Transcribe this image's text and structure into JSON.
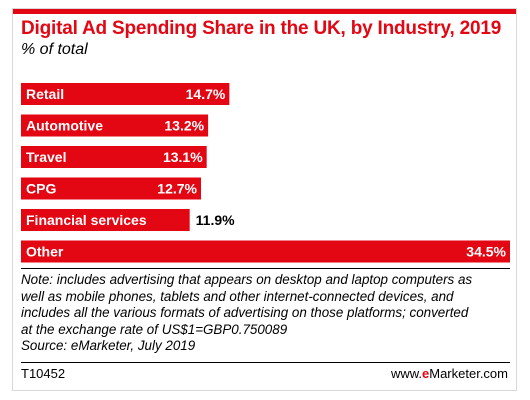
{
  "header": {
    "title": "Digital Ad Spending Share in the UK, by Industry, 2019",
    "subtitle": "% of total"
  },
  "chart_data": {
    "type": "bar",
    "orientation": "horizontal",
    "title": "Digital Ad Spending Share in the UK, by Industry, 2019",
    "subtitle": "% of total",
    "categories": [
      "Retail",
      "Automotive",
      "Travel",
      "CPG",
      "Financial services",
      "Other"
    ],
    "values": [
      14.7,
      13.2,
      13.1,
      12.7,
      11.9,
      34.5
    ],
    "value_labels": [
      "14.7%",
      "13.2%",
      "13.1%",
      "12.7%",
      "11.9%",
      "34.5%"
    ],
    "unit": "%",
    "xlim": [
      0,
      34.5
    ],
    "grid": false,
    "legend": "none",
    "bar_color": "#e30613"
  },
  "notes": {
    "lines": [
      "Note: includes advertising that appears on desktop and laptop computers as",
      "well as mobile phones, tablets and other internet-connected devices, and",
      "includes all the various formats of advertising on those platforms; converted",
      "at the exchange rate of US$1=GBP0.750089"
    ],
    "source": "Source: eMarketer, July 2019"
  },
  "footer": {
    "code": "T10452",
    "brand_prefix": "www.",
    "brand_e": "e",
    "brand_rest": "Marketer.com"
  },
  "colors": {
    "accent": "#e30613"
  }
}
